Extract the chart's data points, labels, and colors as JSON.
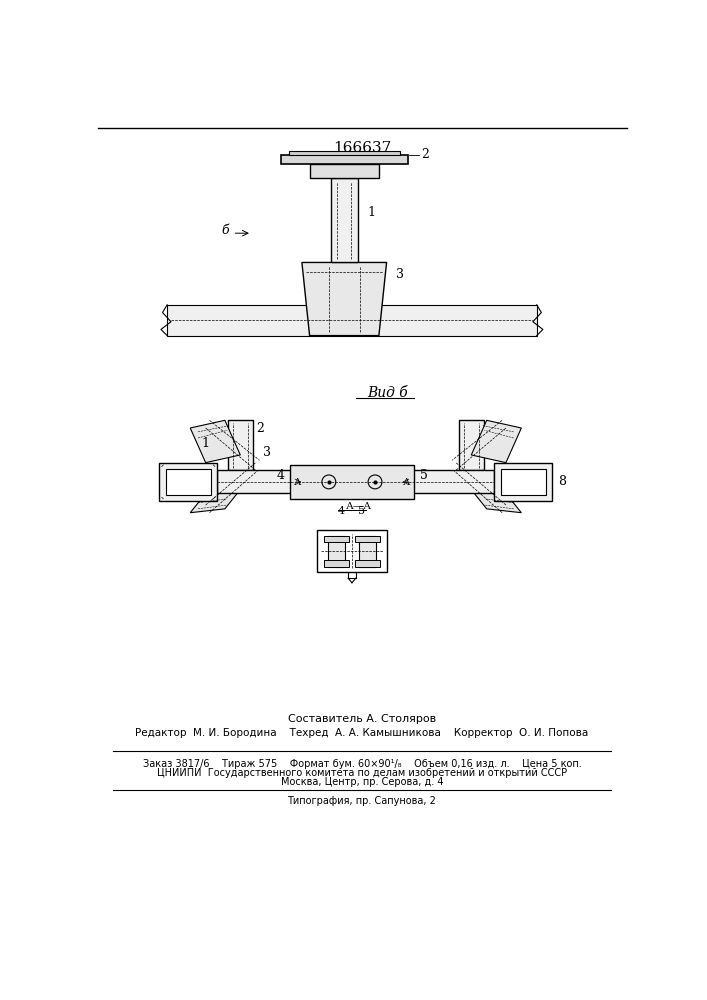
{
  "patent_number": "166637",
  "background_color": "#ffffff",
  "text_color": "#000000",
  "composer_text": "Составитель А. Столяров",
  "editor_text": "Редактор  М. И. Бородина    Техред  А. А. Камышникова    Корректор  О. И. Попова",
  "info_line1": "Заказ 3817/6    Тираж 575    Формат бум. 60×90¹/₈    Объем 0,16 изд. л.    Цена 5 коп.",
  "info_line2": "ЦНИИПИ  Государственного комитета по делам изобретений и открытий СССР",
  "info_line3": "Москва, Центр, пр. Серова, д. 4",
  "info_line4": "Типография, пр. Сапунова, 2"
}
